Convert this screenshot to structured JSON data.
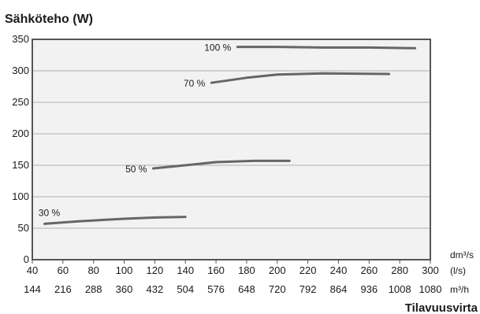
{
  "chart_data": {
    "type": "line",
    "title": "Sähköteho (W)",
    "xlabel": "Tilavuusvirta",
    "x_units": {
      "primary": "dm³/s",
      "secondary": "(l/s)",
      "tertiary": "m³/h"
    },
    "xlim": [
      40,
      300
    ],
    "ylim": [
      0,
      350
    ],
    "x_ticks": [
      40,
      60,
      80,
      100,
      120,
      140,
      160,
      180,
      200,
      220,
      240,
      260,
      280,
      300
    ],
    "x_ticks_m3h": [
      "144",
      "216",
      "288",
      "360",
      "432",
      "504",
      "576",
      "648",
      "720",
      "792",
      "864",
      "936",
      "1008",
      "1080"
    ],
    "y_ticks": [
      0,
      50,
      100,
      150,
      200,
      250,
      300,
      350
    ],
    "grid": "horizontal",
    "series_color": "#666666",
    "grid_color": "#b0b0b0",
    "plot_background": "#f2f2f2",
    "series": [
      {
        "name": "30 %",
        "x": [
          48,
          70,
          100,
          120,
          140
        ],
        "y": [
          57,
          61,
          65,
          67,
          68
        ]
      },
      {
        "name": "50 %",
        "x": [
          119,
          140,
          160,
          185,
          208
        ],
        "y": [
          145,
          150,
          155,
          157,
          157
        ]
      },
      {
        "name": "70 %",
        "x": [
          157,
          180,
          200,
          230,
          273
        ],
        "y": [
          281,
          289,
          294,
          296,
          295
        ]
      },
      {
        "name": "100 %",
        "x": [
          174,
          200,
          230,
          260,
          290
        ],
        "y": [
          338,
          338,
          337,
          337,
          336
        ]
      }
    ]
  }
}
